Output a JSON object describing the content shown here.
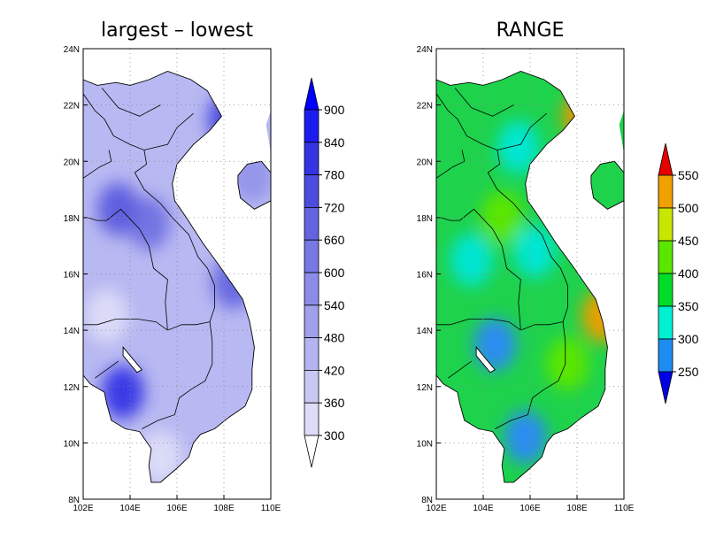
{
  "panels": [
    {
      "title": "largest – lowest",
      "palette": "blue",
      "x_ticks": [
        "102E",
        "104E",
        "106E",
        "108E",
        "110E"
      ],
      "y_ticks": [
        "8N",
        "10N",
        "12N",
        "14N",
        "16N",
        "18N",
        "20N",
        "22N",
        "24N"
      ],
      "colorbar": {
        "levels": [
          "300",
          "360",
          "420",
          "480",
          "540",
          "600",
          "660",
          "720",
          "780",
          "840",
          "900"
        ],
        "colors": [
          "#ffffff",
          "#dcdcf8",
          "#c8c8f4",
          "#b4b4f0",
          "#a0a0ec",
          "#8c8ce8",
          "#7878e4",
          "#6464e0",
          "#4c4ce0",
          "#3434e4",
          "#1c1cf0",
          "#0000ff"
        ]
      },
      "land_base": "#b8b8f2",
      "hotspots": [
        {
          "lon": 104.8,
          "lat": 17.8,
          "color": "#7474e4"
        },
        {
          "lon": 103.7,
          "lat": 11.8,
          "color": "#3a3ae6"
        },
        {
          "lon": 103.5,
          "lat": 18.3,
          "color": "#6060e0"
        },
        {
          "lon": 108.2,
          "lat": 21.5,
          "color": "#5050e0"
        },
        {
          "lon": 108.4,
          "lat": 15.7,
          "color": "#6a6ae2"
        },
        {
          "lon": 109.2,
          "lat": 19.5,
          "color": "#9494ea"
        },
        {
          "lon": 103.0,
          "lat": 14.5,
          "color": "#dcdcf8"
        },
        {
          "lon": 105.3,
          "lat": 9.5,
          "color": "#dcdcf8"
        }
      ]
    },
    {
      "title": "RANGE",
      "palette": "rainbow",
      "x_ticks": [
        "102E",
        "104E",
        "106E",
        "108E",
        "110E"
      ],
      "y_ticks": [
        "8N",
        "10N",
        "12N",
        "14N",
        "16N",
        "18N",
        "20N",
        "22N",
        "24N"
      ],
      "colorbar": {
        "levels": [
          "250",
          "300",
          "350",
          "400",
          "450",
          "500",
          "550"
        ],
        "colors": [
          "#0000e6",
          "#1e8cf0",
          "#00f0d2",
          "#00dc28",
          "#5ae600",
          "#c8e600",
          "#f0a000",
          "#e60000"
        ]
      },
      "land_base": "#1ed24c",
      "hotspots": [
        {
          "lon": 104.5,
          "lat": 13.5,
          "color": "#2a8cf0"
        },
        {
          "lon": 105.8,
          "lat": 10.2,
          "color": "#2a8cf0"
        },
        {
          "lon": 103.5,
          "lat": 16.5,
          "color": "#00e6d2"
        },
        {
          "lon": 105.5,
          "lat": 20.5,
          "color": "#00e6d2"
        },
        {
          "lon": 104.8,
          "lat": 18.0,
          "color": "#5ae600"
        },
        {
          "lon": 108.3,
          "lat": 21.6,
          "color": "#e69600"
        },
        {
          "lon": 109.1,
          "lat": 14.5,
          "color": "#e6a000"
        },
        {
          "lon": 107.6,
          "lat": 12.8,
          "color": "#5ae600"
        },
        {
          "lon": 106.2,
          "lat": 16.8,
          "color": "#00e6d2"
        }
      ]
    }
  ]
}
